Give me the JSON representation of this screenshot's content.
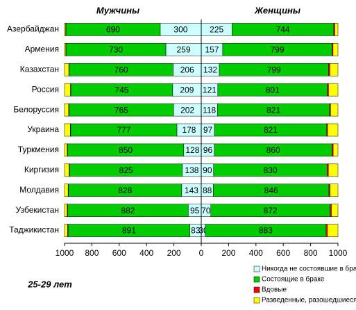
{
  "chart_data": {
    "type": "bar",
    "left_title": "Мужчины",
    "right_title": "Женщины",
    "annotation": "25-29 лет",
    "categories": [
      "Азербайджан",
      "Армения",
      "Казахстан",
      "Россия",
      "Белоруссия",
      "Украина",
      "Туркмения",
      "Киргизия",
      "Молдавия",
      "Узбекистан",
      "Таджикистан"
    ],
    "series": [
      {
        "name": "Никогда  не состоявшие в браке",
        "color": "#ccffff",
        "data_labels": true,
        "values_left": [
          300,
          259,
          206,
          209,
          202,
          178,
          128,
          138,
          143,
          95,
          83
        ],
        "values_right": [
          225,
          157,
          132,
          121,
          118,
          97,
          96,
          90,
          88,
          70,
          30
        ]
      },
      {
        "name": "Состоящие в браке",
        "color": "#00cc00",
        "data_labels": true,
        "values_left": [
          690,
          730,
          760,
          745,
          765,
          777,
          850,
          825,
          828,
          882,
          891
        ],
        "values_right": [
          744,
          799,
          799,
          801,
          821,
          821,
          860,
          830,
          846,
          872,
          883
        ]
      },
      {
        "name": "Вдовые",
        "color": "#ff0000",
        "data_labels": false,
        "values_left": [
          2,
          2,
          3,
          3,
          3,
          3,
          3,
          4,
          3,
          4,
          4
        ],
        "values_right": [
          8,
          8,
          10,
          9,
          7,
          6,
          9,
          10,
          8,
          10,
          10
        ]
      },
      {
        "name": "Разведенные, разошедшиеся",
        "color": "#ffff00",
        "data_labels": false,
        "values_left": [
          8,
          9,
          31,
          43,
          30,
          42,
          19,
          33,
          26,
          19,
          22
        ],
        "values_right": [
          23,
          36,
          59,
          69,
          54,
          76,
          35,
          70,
          58,
          48,
          77
        ]
      }
    ],
    "xlim_left": [
      1000,
      0
    ],
    "xticks_left": [
      1000,
      800,
      600,
      400,
      200
    ],
    "xlim_right": [
      0,
      1000
    ],
    "xticks_right": [
      0,
      200,
      400,
      600,
      800,
      1000
    ]
  }
}
